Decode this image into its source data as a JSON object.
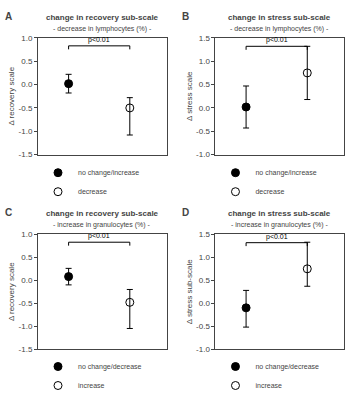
{
  "chart_data": [
    {
      "type": "scatter",
      "panel_label": "A",
      "title": "change in recovery sub-scale",
      "subtitle": "- decrease in lymphocytes (%) -",
      "ylabel": "Δ recovery scale",
      "xlim": [
        0.5,
        2.6
      ],
      "xticks": [],
      "ylim": [
        -1.5,
        1.0
      ],
      "yticks": [
        -1.5,
        {
          "value": -1.0,
          "label": "-1.0"
        },
        -0.5,
        {
          "value": 0.0,
          "label": "0.0"
        },
        0.5,
        {
          "value": 1.0,
          "label": "1.0"
        }
      ],
      "tick_labels": "y",
      "grid": false,
      "legend": "bottom",
      "series": [
        {
          "name": "no change/increase",
          "color": "black",
          "marker": "circle",
          "x": [
            1
          ],
          "values": [
            0.02
          ],
          "error_minus": [
            0.2
          ],
          "error_plus": [
            0.2
          ]
        },
        {
          "name": "decrease",
          "color": "black",
          "marker": "circle-open",
          "x": [
            2
          ],
          "values": [
            -0.5
          ],
          "error_minus": [
            0.58
          ],
          "error_plus": [
            0.22
          ]
        }
      ],
      "significance": {
        "text": "p<0.01",
        "x1": 1,
        "x2": 2,
        "y": 0.83
      }
    },
    {
      "type": "scatter",
      "panel_label": "B",
      "title": "change in stress sub-scale",
      "subtitle": "- decrease in lymphocytes (%) -",
      "ylabel": "Δ stress scale",
      "xlim": [
        0.5,
        2.6
      ],
      "xticks": [],
      "ylim": [
        -1.0,
        1.5
      ],
      "yticks": [
        {
          "value": -1.0,
          "label": "-1.0"
        },
        -0.5,
        {
          "value": 0.0,
          "label": "0.0"
        },
        0.5,
        {
          "value": 1.0,
          "label": "1.0"
        },
        1.5
      ],
      "tick_labels": "y",
      "grid": false,
      "legend": "bottom",
      "series": [
        {
          "name": "no change/increase",
          "color": "black",
          "marker": "circle",
          "x": [
            1
          ],
          "values": [
            0.02
          ],
          "error_minus": [
            0.45
          ],
          "error_plus": [
            0.45
          ]
        },
        {
          "name": "decrease",
          "color": "black",
          "marker": "circle-open",
          "x": [
            2
          ],
          "values": [
            0.75
          ],
          "error_minus": [
            0.57
          ],
          "error_plus": [
            0.57
          ]
        }
      ],
      "significance": {
        "text": "p<0.01",
        "x1": 1,
        "x2": 2,
        "y": 1.32
      }
    },
    {
      "type": "scatter",
      "panel_label": "C",
      "title": "change in recovery sub-scale",
      "subtitle": "- increase in granulocytes (%) -",
      "ylabel": "Δ recovery scale",
      "xlim": [
        0.5,
        2.6
      ],
      "xticks": [],
      "ylim": [
        -1.5,
        1.0
      ],
      "yticks": [
        -1.5,
        {
          "value": -1.0,
          "label": "-1.0"
        },
        -0.5,
        {
          "value": 0.0,
          "label": "0.0"
        },
        0.5,
        {
          "value": 1.0,
          "label": "1.0"
        }
      ],
      "tick_labels": "y",
      "grid": false,
      "legend": "bottom",
      "series": [
        {
          "name": "no change/decrease",
          "color": "black",
          "marker": "circle",
          "x": [
            1
          ],
          "values": [
            0.08
          ],
          "error_minus": [
            0.18
          ],
          "error_plus": [
            0.18
          ]
        },
        {
          "name": "increase",
          "color": "black",
          "marker": "circle-open",
          "x": [
            2
          ],
          "values": [
            -0.48
          ],
          "error_minus": [
            0.57
          ],
          "error_plus": [
            0.28
          ]
        }
      ],
      "significance": {
        "text": "p<0.01",
        "x1": 1,
        "x2": 2,
        "y": 0.83
      }
    },
    {
      "type": "scatter",
      "panel_label": "D",
      "title": "change in stress sub-scale",
      "subtitle": "- increase in granulocytes (%) -",
      "ylabel": "Δ stress sub-scale",
      "xlim": [
        0.5,
        2.6
      ],
      "xticks": [],
      "ylim": [
        -1.0,
        1.5
      ],
      "yticks": [
        {
          "value": -1.0,
          "label": "-1.0"
        },
        -0.5,
        {
          "value": 0.0,
          "label": "0.0"
        },
        0.5,
        {
          "value": 1.0,
          "label": "1.0"
        },
        1.5
      ],
      "tick_labels": "y",
      "grid": false,
      "legend": "bottom",
      "series": [
        {
          "name": "no change/decrease",
          "color": "black",
          "marker": "circle",
          "x": [
            1
          ],
          "values": [
            -0.1
          ],
          "error_minus": [
            0.42
          ],
          "error_plus": [
            0.38
          ]
        },
        {
          "name": "increase",
          "color": "black",
          "marker": "circle-open",
          "x": [
            2
          ],
          "values": [
            0.75
          ],
          "error_minus": [
            0.38
          ],
          "error_plus": [
            0.58
          ]
        }
      ],
      "significance": {
        "text": "p<0.01",
        "x1": 1,
        "x2": 2,
        "y": 1.32
      }
    }
  ]
}
